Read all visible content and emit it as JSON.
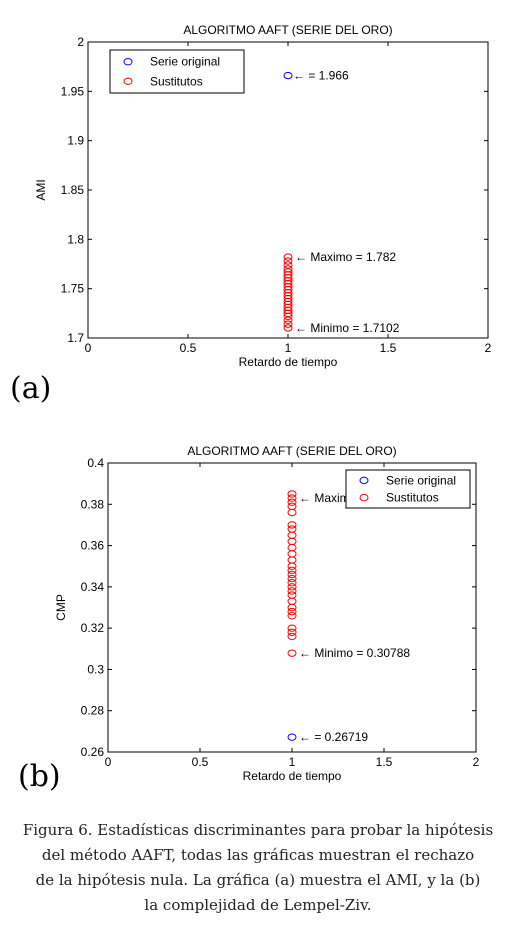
{
  "chart_data": [
    {
      "type": "scatter",
      "panel_label": "(a)",
      "title": "ALGORITMO AAFT (SERIE DEL ORO)",
      "xlabel": "Retardo de tiempo",
      "ylabel": "AMI",
      "xlim": [
        0,
        2
      ],
      "ylim": [
        1.7,
        2
      ],
      "xticks": [
        0,
        0.5,
        1,
        1.5,
        2
      ],
      "xtick_labels": [
        "0",
        "0.5",
        "1",
        "1.5",
        "2"
      ],
      "yticks": [
        1.7,
        1.75,
        1.8,
        1.85,
        1.9,
        1.95,
        2
      ],
      "ytick_labels": [
        "1.7",
        "1.75",
        "1.8",
        "1.85",
        "1.9",
        "1.95",
        "2"
      ],
      "grid": false,
      "legend_position": "top-left",
      "series": [
        {
          "name": "Serie original",
          "color": "#0000ff",
          "marker": "circle",
          "points": [
            [
              1,
              1.966
            ]
          ]
        },
        {
          "name": "Sustitutos",
          "color": "#ff0000",
          "marker": "circle",
          "points": [
            [
              1,
              1.7102
            ],
            [
              1,
              1.714
            ],
            [
              1,
              1.718
            ],
            [
              1,
              1.722
            ],
            [
              1,
              1.725
            ],
            [
              1,
              1.728
            ],
            [
              1,
              1.731
            ],
            [
              1,
              1.734
            ],
            [
              1,
              1.737
            ],
            [
              1,
              1.74
            ],
            [
              1,
              1.743
            ],
            [
              1,
              1.746
            ],
            [
              1,
              1.749
            ],
            [
              1,
              1.752
            ],
            [
              1,
              1.755
            ],
            [
              1,
              1.758
            ],
            [
              1,
              1.761
            ],
            [
              1,
              1.764
            ],
            [
              1,
              1.767
            ],
            [
              1,
              1.77
            ],
            [
              1,
              1.774
            ],
            [
              1,
              1.778
            ],
            [
              1,
              1.782
            ]
          ]
        }
      ],
      "annotations": [
        {
          "text": "← = 1.966",
          "x": 1,
          "y": 1.966
        },
        {
          "text": "← Maximo = 1.782",
          "x": 1,
          "y": 1.782
        },
        {
          "text": "← Minimo = 1.7102",
          "x": 1,
          "y": 1.7102
        }
      ]
    },
    {
      "type": "scatter",
      "panel_label": "(b)",
      "title": "ALGORITMO AAFT (SERIE DEL ORO)",
      "xlabel": "Retardo de tiempo",
      "ylabel": "CMP",
      "xlim": [
        0,
        2
      ],
      "ylim": [
        0.26,
        0.4
      ],
      "xticks": [
        0,
        0.5,
        1,
        1.5,
        2
      ],
      "xtick_labels": [
        "0",
        "0.5",
        "1",
        "1.5",
        "2"
      ],
      "yticks": [
        0.26,
        0.28,
        0.3,
        0.32,
        0.34,
        0.36,
        0.38,
        0.4
      ],
      "ytick_labels": [
        "0.26",
        "0.28",
        "0.3",
        "0.32",
        "0.34",
        "0.36",
        "0.38",
        "0.4"
      ],
      "grid": false,
      "legend_position": "top-right",
      "series": [
        {
          "name": "Serie original",
          "color": "#0000ff",
          "marker": "circle",
          "points": [
            [
              1,
              0.26719
            ]
          ]
        },
        {
          "name": "Sustitutos",
          "color": "#ff0000",
          "marker": "circle",
          "points": [
            [
              1,
              0.30788
            ],
            [
              1,
              0.316
            ],
            [
              1,
              0.318
            ],
            [
              1,
              0.32
            ],
            [
              1,
              0.326
            ],
            [
              1,
              0.328
            ],
            [
              1,
              0.33
            ],
            [
              1,
              0.333
            ],
            [
              1,
              0.336
            ],
            [
              1,
              0.338
            ],
            [
              1,
              0.34
            ],
            [
              1,
              0.342
            ],
            [
              1,
              0.344
            ],
            [
              1,
              0.346
            ],
            [
              1,
              0.348
            ],
            [
              1,
              0.35
            ],
            [
              1,
              0.353
            ],
            [
              1,
              0.356
            ],
            [
              1,
              0.359
            ],
            [
              1,
              0.362
            ],
            [
              1,
              0.365
            ],
            [
              1,
              0.368
            ],
            [
              1,
              0.37
            ],
            [
              1,
              0.376
            ],
            [
              1,
              0.379
            ],
            [
              1,
              0.381
            ],
            [
              1,
              0.383
            ],
            [
              1,
              0.385
            ]
          ]
        }
      ],
      "annotations": [
        {
          "text": "← Maxim",
          "x": 1,
          "y": 0.383
        },
        {
          "text": "← Minimo = 0.30788",
          "x": 1,
          "y": 0.30788
        },
        {
          "text": "← = 0.26719",
          "x": 1,
          "y": 0.26719
        }
      ]
    }
  ],
  "caption": {
    "lines": [
      "Figura 6. Estadísticas discriminantes para probar la hipótesis",
      "del método AAFT, todas las gráficas muestran el   rechazo",
      "de la hipótesis nula. La gráfica (a) muestra el AMI, y la (b)",
      "la complejidad de Lempel-Ziv."
    ]
  }
}
